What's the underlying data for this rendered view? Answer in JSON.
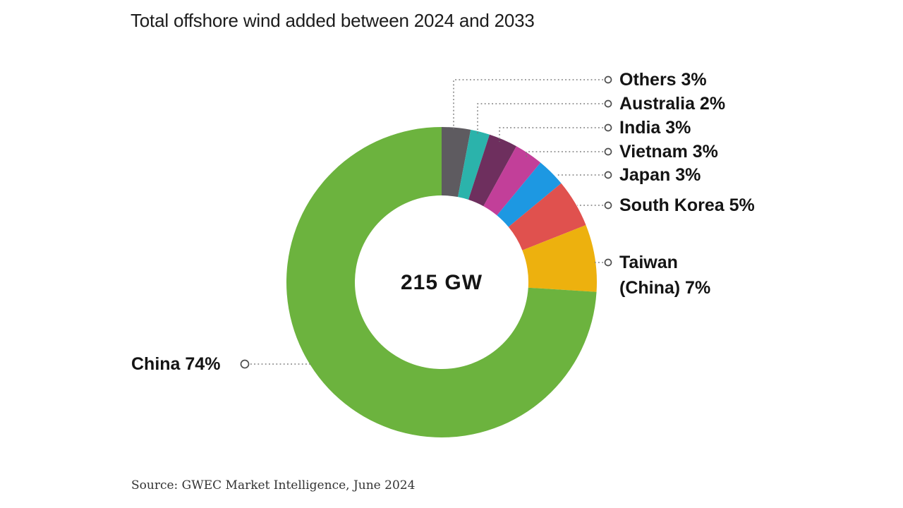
{
  "title": "Total offshore wind added between 2024 and 2033",
  "source": "Source: GWEC Market Intelligence, June 2024",
  "center_label": "215 GW",
  "chart_data": {
    "type": "pie",
    "subtype": "donut",
    "title": "Total offshore wind added between 2024 and 2033",
    "center_total": "215 GW",
    "unit": "% share of 215 GW total offshore wind additions 2024-2033",
    "start_angle_deg": 0,
    "direction": "clockwise",
    "legend_position": "callout labels (right side, China on left)",
    "segments": [
      {
        "name": "Others",
        "pct": 3,
        "color": "#5E5B60",
        "label": "Others 3%"
      },
      {
        "name": "Australia",
        "pct": 2,
        "color": "#2BB3AB",
        "label": "Australia 2%"
      },
      {
        "name": "India",
        "pct": 3,
        "color": "#6E2F5E",
        "label": "India 3%"
      },
      {
        "name": "Vietnam",
        "pct": 3,
        "color": "#C23F99",
        "label": "Vietnam 3%"
      },
      {
        "name": "Japan",
        "pct": 3,
        "color": "#1D98E2",
        "label": "Japan 3%"
      },
      {
        "name": "South Korea",
        "pct": 5,
        "color": "#E0514E",
        "label": "South Korea 5%"
      },
      {
        "name": "Taiwan (China)",
        "pct": 7,
        "color": "#EDB10E",
        "label": "Taiwan\n(China) 7%"
      },
      {
        "name": "China",
        "pct": 74,
        "color": "#6CB33E",
        "label": "China 74%"
      }
    ],
    "leader_line_color": "#7a7a7a",
    "marker_stroke_color": "#4d4d4d"
  }
}
